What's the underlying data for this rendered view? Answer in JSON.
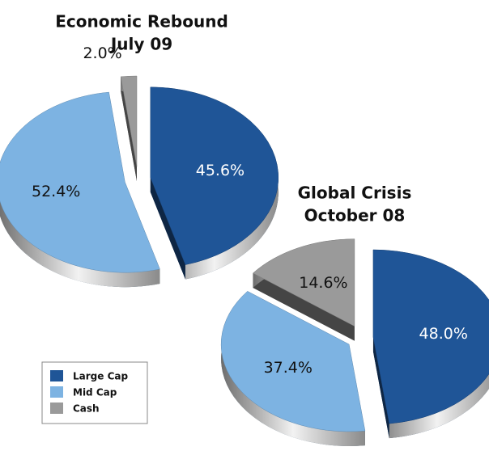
{
  "chart_data": [
    {
      "type": "pie",
      "title": [
        "Economic Rebound",
        "July 09"
      ],
      "categories": [
        "Large Cap",
        "Mid Cap",
        "Cash"
      ],
      "values": [
        45.6,
        52.4,
        2.0
      ],
      "value_labels": [
        "45.6%",
        "52.4%",
        "2.0%"
      ],
      "colors": [
        "#1f5597",
        "#7db3e2",
        "#9a9a9a"
      ]
    },
    {
      "type": "pie",
      "title": [
        "Global Crisis",
        "October 08"
      ],
      "categories": [
        "Large Cap",
        "Mid Cap",
        "Cash"
      ],
      "values": [
        48.0,
        37.4,
        14.6
      ],
      "value_labels": [
        "48.0%",
        "37.4%",
        "14.6%"
      ],
      "colors": [
        "#1f5597",
        "#7db3e2",
        "#9a9a9a"
      ]
    }
  ]
}
